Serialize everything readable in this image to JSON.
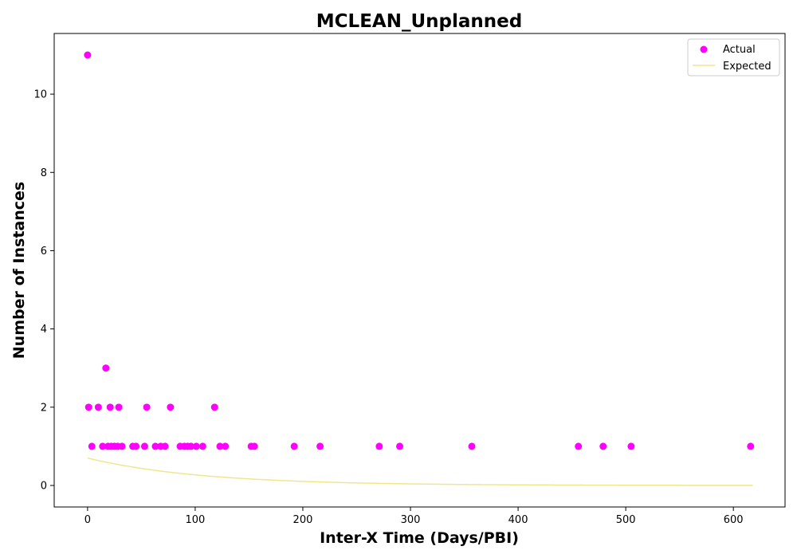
{
  "chart_data": {
    "type": "scatter",
    "title": "MCLEAN_Unplanned",
    "xlabel": "Inter-X Time (Days/PBI)",
    "ylabel": "Number of Instances",
    "xlim": [
      -31,
      648
    ],
    "ylim": [
      -0.55,
      11.55
    ],
    "xticks": [
      0,
      100,
      200,
      300,
      400,
      500,
      600
    ],
    "yticks": [
      0,
      2,
      4,
      6,
      8,
      10
    ],
    "grid": false,
    "legend_position": "upper right",
    "series": [
      {
        "name": "Actual",
        "kind": "scatter",
        "color": "#ff00ff",
        "points": [
          [
            0,
            11
          ],
          [
            1,
            2
          ],
          [
            4,
            1
          ],
          [
            10,
            2
          ],
          [
            14,
            1
          ],
          [
            17,
            3
          ],
          [
            19,
            1
          ],
          [
            21,
            2
          ],
          [
            22,
            1
          ],
          [
            25,
            1
          ],
          [
            28,
            1
          ],
          [
            29,
            2
          ],
          [
            32,
            1
          ],
          [
            42,
            1
          ],
          [
            45,
            1
          ],
          [
            53,
            1
          ],
          [
            55,
            2
          ],
          [
            63,
            1
          ],
          [
            68,
            1
          ],
          [
            72,
            1
          ],
          [
            77,
            2
          ],
          [
            86,
            1
          ],
          [
            90,
            1
          ],
          [
            93,
            1
          ],
          [
            96,
            1
          ],
          [
            101,
            1
          ],
          [
            107,
            1
          ],
          [
            118,
            2
          ],
          [
            123,
            1
          ],
          [
            128,
            1
          ],
          [
            152,
            1
          ],
          [
            155,
            1
          ],
          [
            192,
            1
          ],
          [
            216,
            1
          ],
          [
            271,
            1
          ],
          [
            290,
            1
          ],
          [
            357,
            1
          ],
          [
            456,
            1
          ],
          [
            479,
            1
          ],
          [
            505,
            1
          ],
          [
            616,
            1
          ]
        ]
      },
      {
        "name": "Expected",
        "kind": "line",
        "color": "#f0e68c",
        "function": "exponential",
        "amplitude": 0.7,
        "rate": 0.0095,
        "x_range": [
          0,
          618
        ]
      }
    ]
  }
}
